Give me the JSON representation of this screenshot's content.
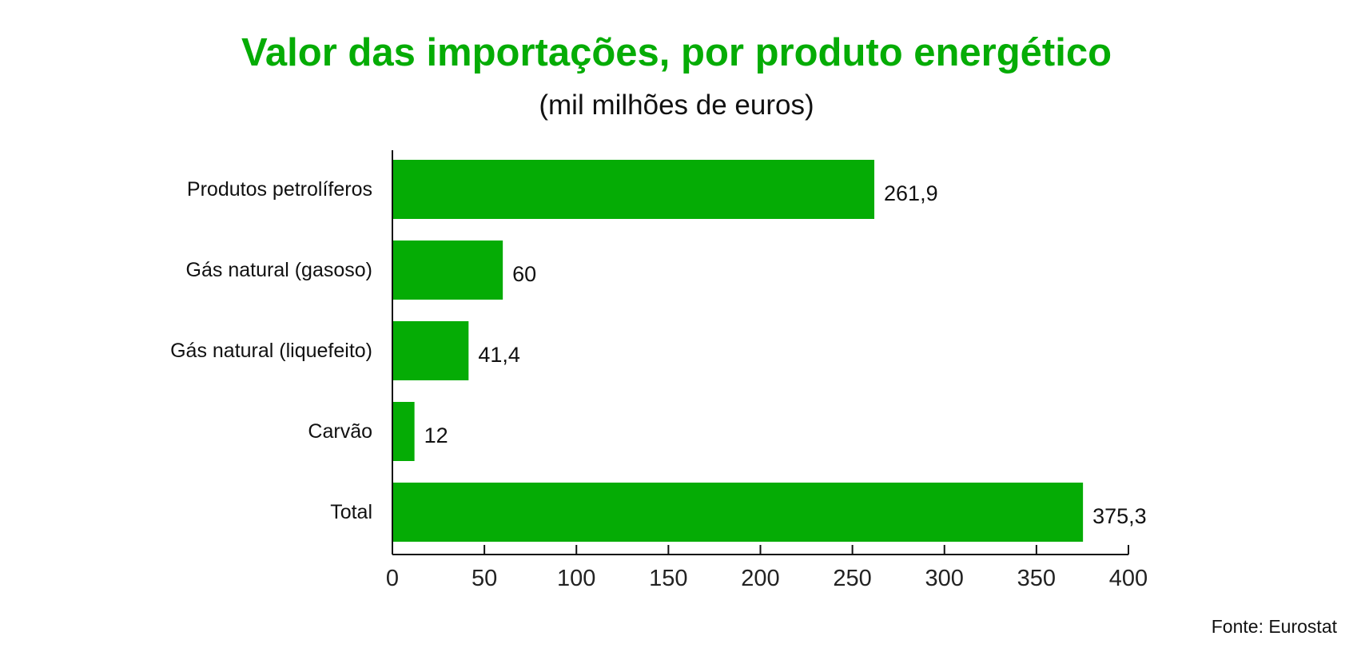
{
  "title": "Valor das importações, por produto energético",
  "subtitle": "(mil milhões de euros)",
  "source": "Fonte: Eurostat",
  "colors": {
    "bar": "#05ac05",
    "title": "#05ac05"
  },
  "chart_data": {
    "type": "bar",
    "orientation": "horizontal",
    "title": "Valor das importações, por produto energético",
    "subtitle": "(mil milhões de euros)",
    "categories": [
      "Produtos petrolíferos",
      "Gás natural (gasoso)",
      "Gás natural (liquefeito)",
      "Carvão",
      "Total"
    ],
    "values": [
      261.9,
      60,
      41.4,
      12,
      375.3
    ],
    "value_labels": [
      "261,9",
      "60",
      "41,4",
      "12",
      "375,3"
    ],
    "xlim": [
      0,
      400
    ],
    "xticks": [
      0,
      50,
      100,
      150,
      200,
      250,
      300,
      350,
      400
    ],
    "grid": false,
    "legend": "none"
  }
}
